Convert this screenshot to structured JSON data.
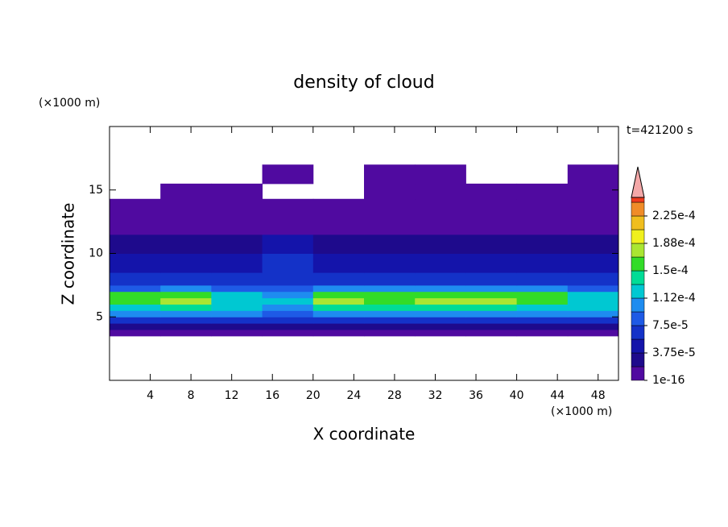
{
  "chart_data": {
    "type": "contour",
    "title": "density of cloud",
    "x_label": "X coordinate",
    "y_label": "Z coordinate",
    "x_unit": "(×1000 m)",
    "y_unit": "(×1000 m)",
    "time_label": "t=421200 s",
    "xlim": [
      0,
      50
    ],
    "ylim": [
      0,
      20
    ],
    "xticks": [
      4,
      8,
      12,
      16,
      20,
      24,
      28,
      32,
      36,
      40,
      44,
      48
    ],
    "yticks": [
      5,
      10,
      15
    ],
    "x_edges": [
      0,
      5,
      10,
      15,
      20,
      25,
      30,
      35,
      40,
      45,
      50
    ],
    "z_edges": [
      3.5,
      4,
      4.5,
      5,
      5.5,
      6,
      6.5,
      7,
      7.5,
      8.5,
      10,
      11.5,
      14.3,
      15.5,
      17
    ],
    "values": [
      [
        5e-06,
        5e-06,
        5e-06,
        5e-06,
        5e-06,
        5e-06,
        5e-06,
        5e-06,
        5e-06,
        5e-06
      ],
      [
        3e-05,
        3e-05,
        3e-05,
        3e-05,
        3e-05,
        3e-05,
        3e-05,
        3e-05,
        3e-05,
        3e-05
      ],
      [
        7e-05,
        7e-05,
        6e-05,
        6e-05,
        7e-05,
        7e-05,
        7e-05,
        7e-05,
        7e-05,
        6e-05
      ],
      [
        0.0001,
        0.0001,
        0.0001,
        9e-05,
        0.0001,
        0.0001,
        0.0001,
        0.0001,
        0.0001,
        0.0001
      ],
      [
        0.00013,
        0.00014,
        0.00012,
        0.00011,
        0.00014,
        0.00014,
        0.00014,
        0.00014,
        0.00013,
        0.00012
      ],
      [
        0.00016,
        0.00017,
        0.00013,
        0.00012,
        0.00017,
        0.00016,
        0.00017,
        0.00017,
        0.00016,
        0.00013
      ],
      [
        0.00015,
        0.00016,
        0.00012,
        0.0001,
        0.00016,
        0.00015,
        0.00016,
        0.00016,
        0.00015,
        0.00012
      ],
      [
        9e-05,
        0.0001,
        8e-05,
        8e-05,
        0.0001,
        0.0001,
        0.0001,
        0.0001,
        0.0001,
        9e-05
      ],
      [
        6e-05,
        6e-05,
        6e-05,
        7e-05,
        6e-05,
        6e-05,
        6e-05,
        6e-05,
        6e-05,
        6e-05
      ],
      [
        4e-05,
        4e-05,
        5e-05,
        7e-05,
        4e-05,
        4e-05,
        4e-05,
        4e-05,
        4e-05,
        4e-05
      ],
      [
        2e-05,
        2e-05,
        3e-05,
        4e-05,
        2e-05,
        2e-05,
        2e-05,
        2e-05,
        2e-05,
        2e-05
      ],
      [
        5e-06,
        5e-06,
        5e-06,
        5e-06,
        5e-06,
        5e-06,
        5e-06,
        5e-06,
        5e-06,
        5e-06
      ],
      [
        null,
        3e-06,
        3e-06,
        null,
        null,
        3e-06,
        3e-06,
        3e-06,
        3e-06,
        3e-06
      ],
      [
        null,
        null,
        null,
        3e-06,
        null,
        3e-06,
        3e-06,
        null,
        null,
        3e-06
      ]
    ],
    "colorbar": {
      "levels": [
        1e-16,
        1.875e-05,
        3.75e-05,
        5.625e-05,
        7.5e-05,
        9.375e-05,
        0.0001125,
        0.00013125,
        0.00015,
        0.00016875,
        0.0001875,
        0.00020625,
        0.000225,
        0.00024375
      ],
      "colors": [
        "#500aa0",
        "#1e0a8c",
        "#1414aa",
        "#1432c8",
        "#1e5ae6",
        "#1e8cf0",
        "#00c8d2",
        "#00dc96",
        "#32dc28",
        "#aae632",
        "#f0f01e",
        "#f0be1e",
        "#f08c28",
        "#f03c1e"
      ],
      "overflow_color": "#f4a8a8",
      "ticks": [
        {
          "value": 1e-16,
          "label": "1e-16"
        },
        {
          "value": 3.75e-05,
          "label": "3.75e-5"
        },
        {
          "value": 7.5e-05,
          "label": "7.5e-5"
        },
        {
          "value": 0.0001125,
          "label": "1.12e-4"
        },
        {
          "value": 0.00015,
          "label": "1.5e-4"
        },
        {
          "value": 0.0001875,
          "label": "1.88e-4"
        },
        {
          "value": 0.000225,
          "label": "2.25e-4"
        }
      ]
    }
  }
}
